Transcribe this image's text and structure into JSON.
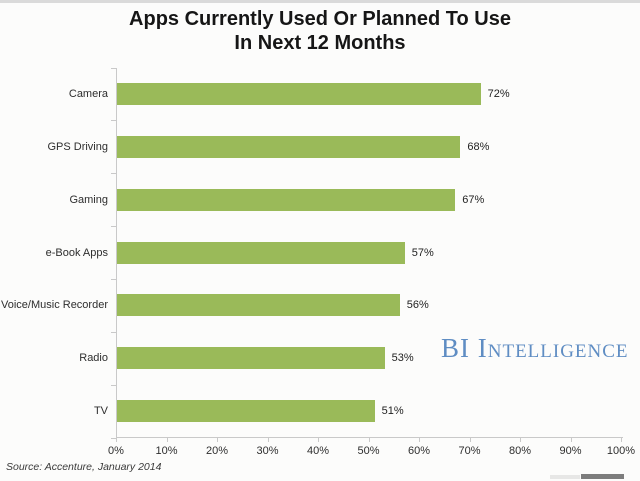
{
  "title": {
    "line1": "Apps Currently Used Or Planned To Use",
    "line2": "In Next 12 Months"
  },
  "chart_data": {
    "type": "bar",
    "orientation": "horizontal",
    "title": "Apps Currently Used Or Planned To Use In Next 12 Months",
    "categories": [
      "Camera",
      "GPS Driving",
      "Gaming",
      "e-Book Apps",
      "Voice/Music Recorder",
      "Radio",
      "TV"
    ],
    "values": [
      72,
      68,
      67,
      57,
      56,
      53,
      51
    ],
    "value_labels": [
      "72%",
      "68%",
      "67%",
      "57%",
      "56%",
      "53%",
      "51%"
    ],
    "xlabel": "",
    "ylabel": "",
    "xlim": [
      0,
      100
    ],
    "x_tick_labels": [
      "0%",
      "10%",
      "20%",
      "30%",
      "40%",
      "50%",
      "60%",
      "70%",
      "80%",
      "90%",
      "100%"
    ],
    "grid": false,
    "legend": "none",
    "bar_color": "#9aba59"
  },
  "watermark": {
    "text": "BI Intelligence",
    "color": "#5f8dc3"
  },
  "source": {
    "text": "Source: Accenture, January 2014"
  },
  "colors": {
    "background": "#fcfcfb",
    "axis": "#c9c9c9",
    "title_text": "#161616",
    "label_text": "#2e2e2e"
  }
}
